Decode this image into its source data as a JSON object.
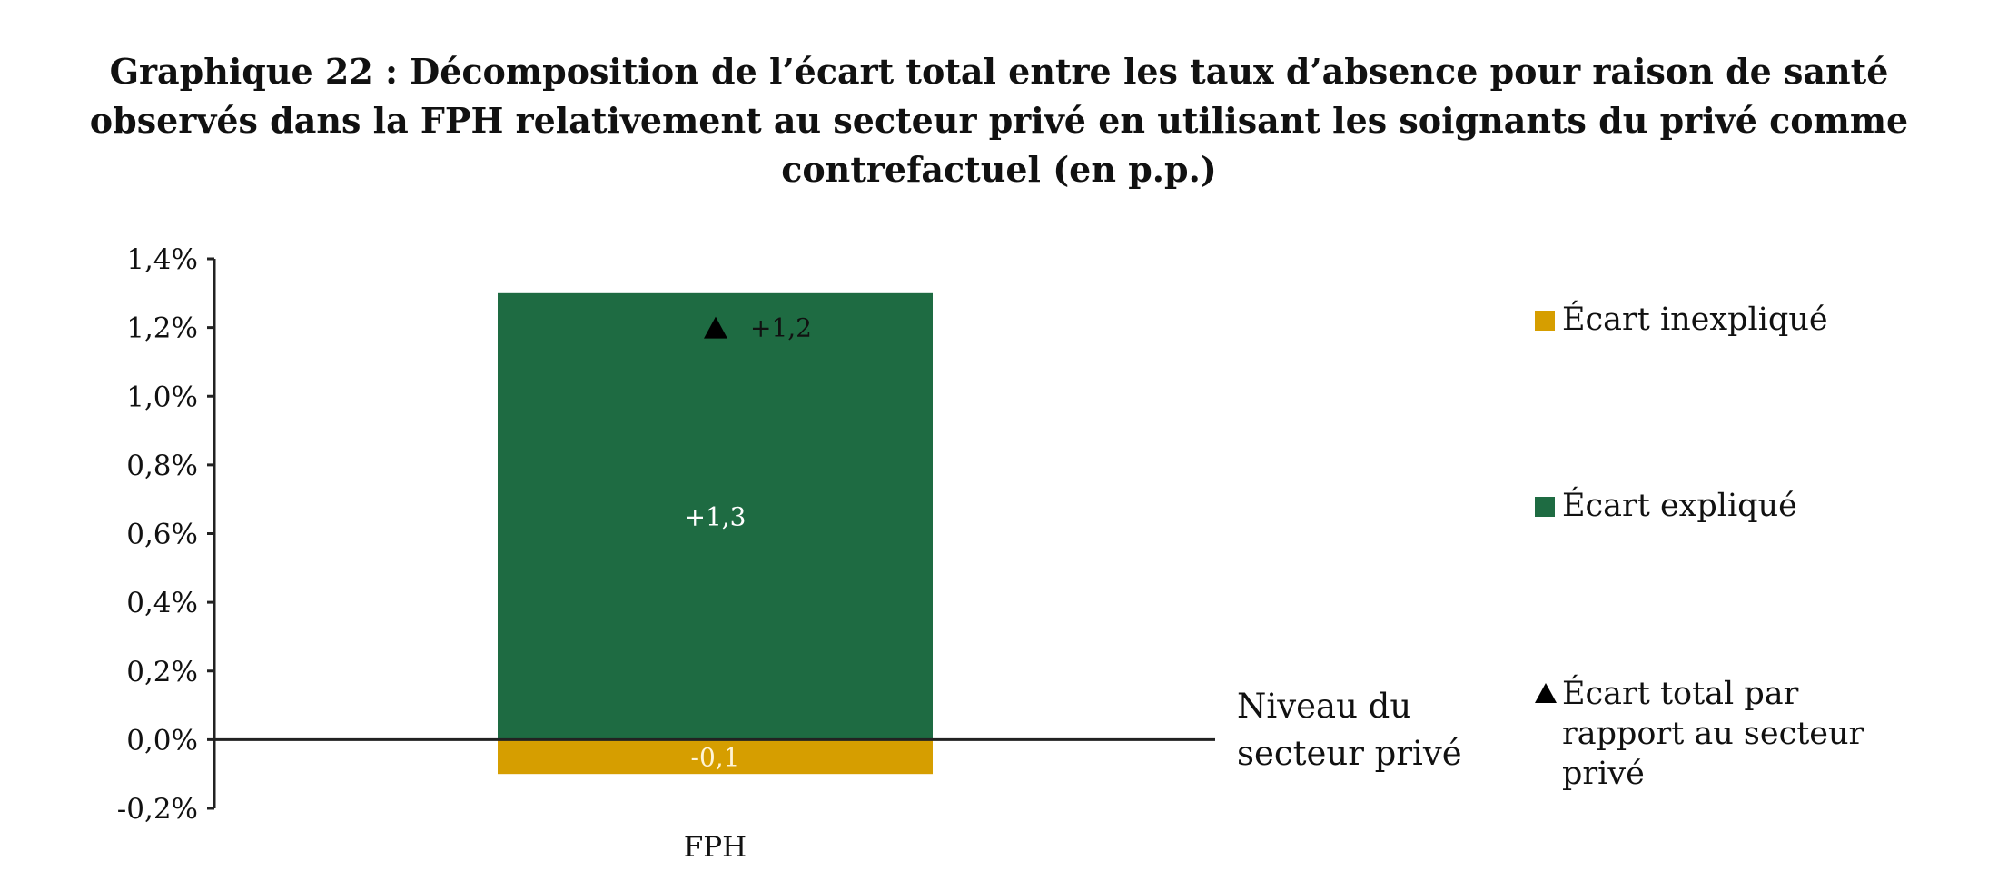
{
  "title_lines": [
    "Graphique 22 : Décomposition de l’écart total entre les taux d’absence pour raison de santé",
    "observés dans la FPH relativement au secteur privé en utilisant les soignants du privé comme",
    "contrefactuel (en p.p.)"
  ],
  "reference_note_lines": [
    "Niveau du",
    "secteur privé"
  ],
  "legend": {
    "unexplained": "Écart inexpliqué",
    "explained": "Écart expliqué",
    "total_lines": [
      "Écart total par",
      "rapport au secteur",
      "privé"
    ]
  },
  "colors": {
    "unexplained": "#D69E00",
    "explained": "#1E6B42",
    "total_marker": "#000000",
    "axis": "#222222"
  },
  "chart_data": {
    "type": "bar",
    "stacked": true,
    "categories": [
      "FPH"
    ],
    "series": [
      {
        "name": "Écart expliqué",
        "values": [
          1.3
        ],
        "label": "+1,3",
        "color": "#1E6B42"
      },
      {
        "name": "Écart inexpliqué",
        "values": [
          -0.1
        ],
        "label": "-0,1",
        "color": "#D69E00"
      }
    ],
    "markers": [
      {
        "name": "Écart total par rapport au secteur privé",
        "values": [
          1.2
        ],
        "label": "+1,2",
        "shape": "triangle"
      }
    ],
    "ylim": [
      -0.2,
      1.4
    ],
    "yticks": [
      1.4,
      1.2,
      1.0,
      0.8,
      0.6,
      0.4,
      0.2,
      0.0,
      -0.2
    ],
    "ytick_labels": [
      "1,4%",
      "1,2%",
      "1,0%",
      "0,8%",
      "0,6%",
      "0,4%",
      "0,2%",
      "0,0%",
      "-0,2%"
    ],
    "reference_line": {
      "value": 0.0,
      "label": "Niveau du secteur privé"
    },
    "legend_position": "right",
    "grid": false
  }
}
